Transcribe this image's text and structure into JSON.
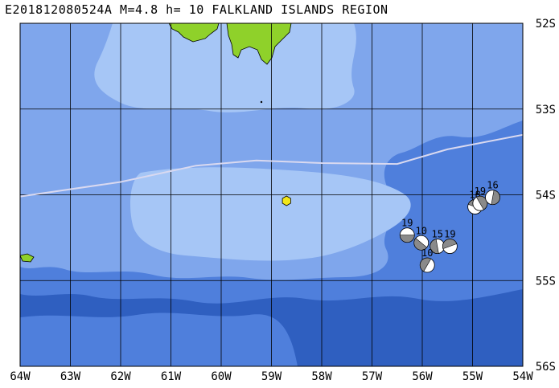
{
  "title": "E201812080524A M=4.8 h= 10 FALKLAND ISLANDS REGION",
  "lon_labels": [
    "64W",
    "63W",
    "62W",
    "61W",
    "60W",
    "59W",
    "58W",
    "57W",
    "56W",
    "55W",
    "54W"
  ],
  "lat_labels": [
    "52S",
    "53S",
    "54S",
    "55S",
    "56S"
  ],
  "lon_range": [
    -64,
    -54
  ],
  "lat_range": [
    -56,
    -52
  ],
  "colors": {
    "deep": "#2f5fc0",
    "mid": "#4f7fdc",
    "shallow": "#7fa6ec",
    "shelf": "#a6c6f6",
    "land": "#8fd12a",
    "plate_boundary": "#d9d9f0",
    "epicenter": "#f2e61a"
  },
  "epicenter": {
    "lon": -58.7,
    "lat": -54.07
  },
  "plate_boundary": [
    [
      -64.0,
      -54.02
    ],
    [
      -62.0,
      -53.85
    ],
    [
      -60.5,
      -53.66
    ],
    [
      -59.3,
      -53.6
    ],
    [
      -58.0,
      -53.63
    ],
    [
      -56.5,
      -53.64
    ],
    [
      -55.5,
      -53.47
    ],
    [
      -54.0,
      -53.3
    ]
  ],
  "mechanisms": [
    {
      "label": "19",
      "lon": -56.3,
      "lat": -54.47
    },
    {
      "label": "10",
      "lon": -56.02,
      "lat": -54.56
    },
    {
      "label": "15",
      "lon": -55.7,
      "lat": -54.6
    },
    {
      "label": "10",
      "lon": -55.9,
      "lat": -54.82
    },
    {
      "label": "19",
      "lon": -55.45,
      "lat": -54.6
    },
    {
      "label": "18",
      "lon": -54.95,
      "lat": -54.14
    },
    {
      "label": "19",
      "lon": -54.85,
      "lat": -54.1
    },
    {
      "label": "16",
      "lon": -54.6,
      "lat": -54.03
    }
  ]
}
